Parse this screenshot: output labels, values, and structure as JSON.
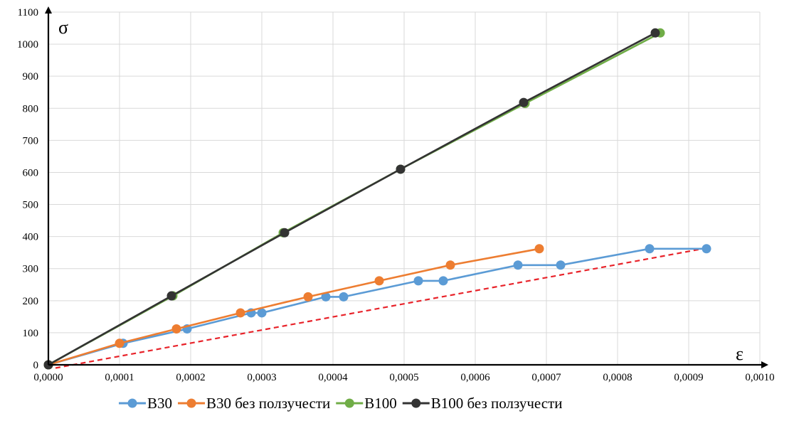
{
  "chart_data": {
    "type": "line",
    "xlabel": "ε",
    "ylabel": "σ",
    "xlim": [
      0,
      0.001
    ],
    "ylim": [
      0,
      1100
    ],
    "x_ticks": [
      "0,0000",
      "0,0001",
      "0,0002",
      "0,0003",
      "0,0004",
      "0,0005",
      "0,0006",
      "0,0007",
      "0,0008",
      "0,0009",
      "0,0010"
    ],
    "y_ticks": [
      "0",
      "100",
      "200",
      "300",
      "400",
      "500",
      "600",
      "700",
      "800",
      "900",
      "1000",
      "1100"
    ],
    "grid": true,
    "legend_position": "bottom",
    "series": [
      {
        "name": "B30",
        "color": "#5b9bd5",
        "points": [
          [
            0,
            0
          ],
          [
            0.000105,
            67
          ],
          [
            0.000195,
            112
          ],
          [
            0.000285,
            162
          ],
          [
            0.0003,
            162
          ],
          [
            0.00039,
            212
          ],
          [
            0.000415,
            212
          ],
          [
            0.00052,
            262
          ],
          [
            0.000555,
            262
          ],
          [
            0.00066,
            311
          ],
          [
            0.00072,
            311
          ],
          [
            0.000845,
            362
          ],
          [
            0.000925,
            362
          ]
        ]
      },
      {
        "name": "B30 без ползучести",
        "color": "#ed7d31",
        "points": [
          [
            0,
            0
          ],
          [
            0.0001,
            67
          ],
          [
            0.00018,
            112
          ],
          [
            0.00027,
            162
          ],
          [
            0.000365,
            212
          ],
          [
            0.000465,
            262
          ],
          [
            0.000565,
            311
          ],
          [
            0.00069,
            362
          ]
        ]
      },
      {
        "name": "B100",
        "color": "#70ad47",
        "points": [
          [
            0,
            0
          ],
          [
            0.000175,
            215
          ],
          [
            0.00033,
            412
          ],
          [
            0.000495,
            610
          ],
          [
            0.00067,
            815
          ],
          [
            0.00086,
            1035
          ]
        ]
      },
      {
        "name": "B100 без ползучести",
        "color": "#333333",
        "points": [
          [
            0,
            0
          ],
          [
            0.000173,
            215
          ],
          [
            0.000332,
            412
          ],
          [
            0.000495,
            610
          ],
          [
            0.000668,
            818
          ],
          [
            0.000853,
            1035
          ]
        ]
      }
    ],
    "reference_line": {
      "color": "#e8232a",
      "style": "dashed",
      "points": [
        [
          1e-05,
          -10
        ],
        [
          0.00092,
          362
        ]
      ]
    }
  }
}
